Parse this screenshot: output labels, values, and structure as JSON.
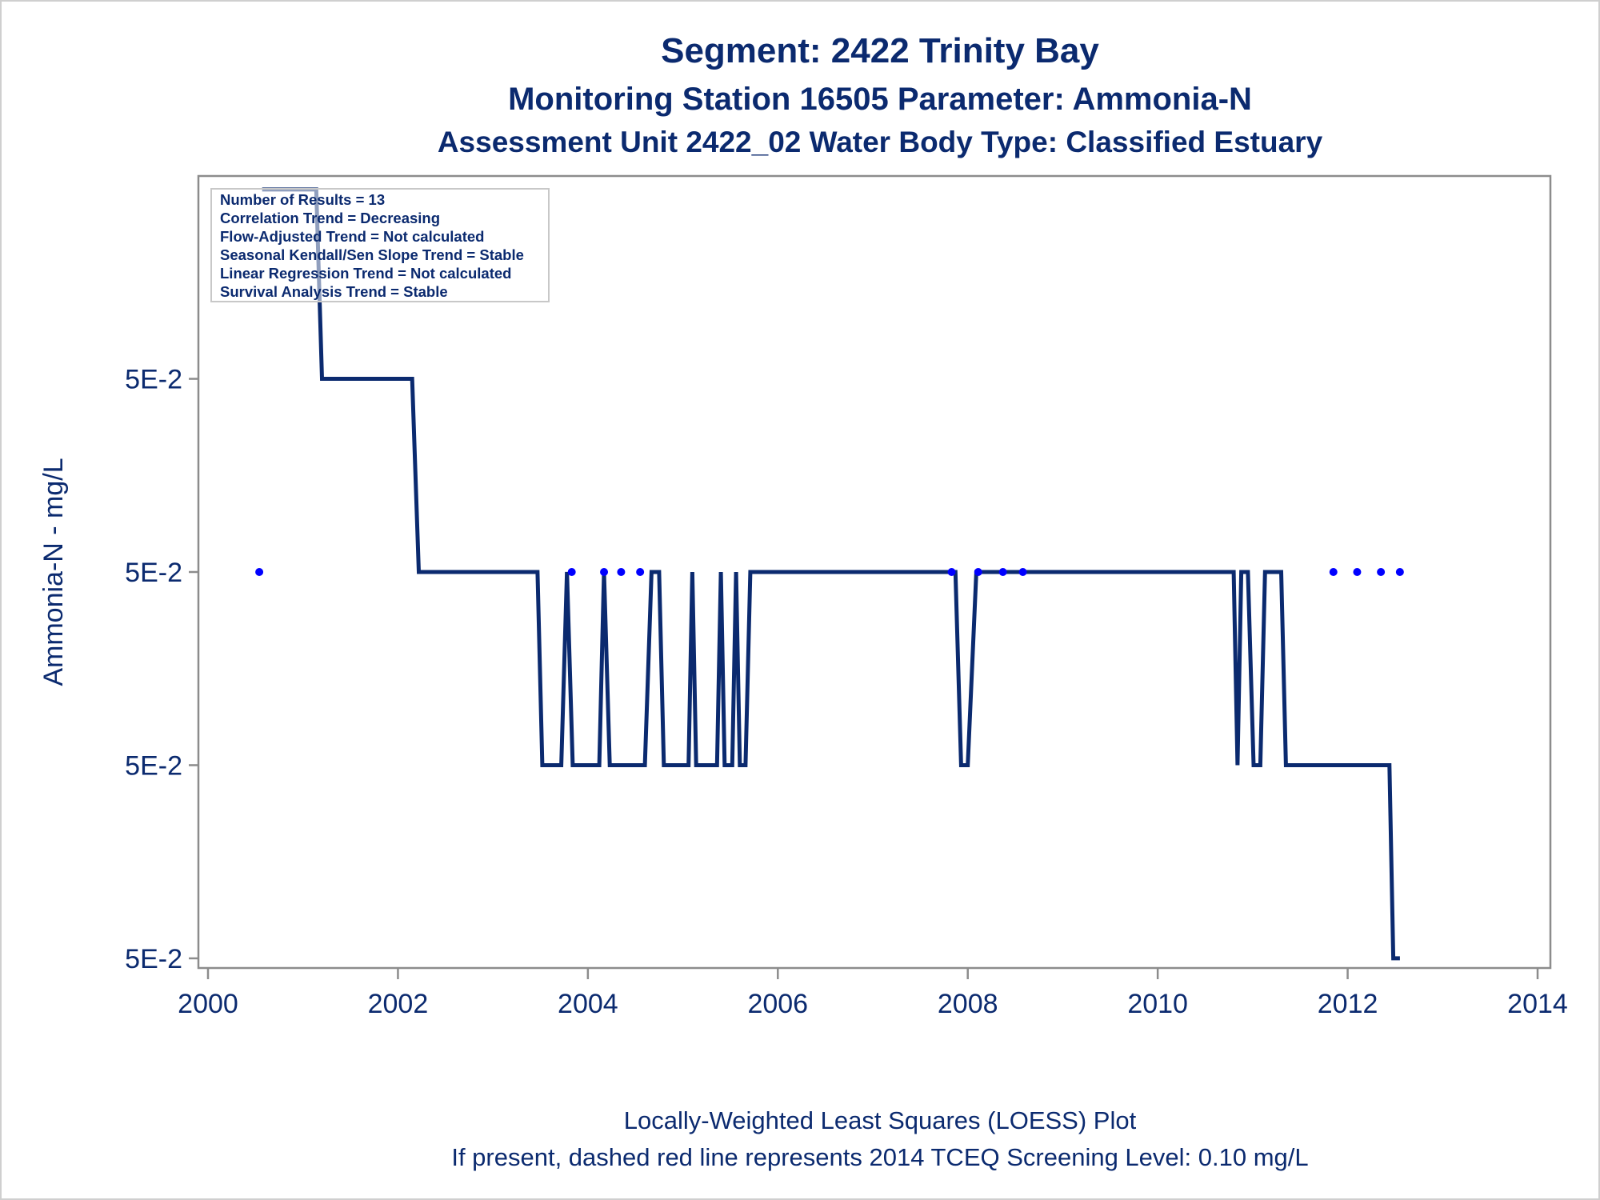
{
  "colors": {
    "ink": "#0b2a6f",
    "line": "#0b2a6f",
    "points": "#0000ff",
    "axis": "#8c8c8c"
  },
  "chart_data": {
    "type": "line",
    "title": "Segment: 2422  Trinity Bay",
    "subtitle": "Monitoring Station 16505 Parameter: Ammonia-N",
    "subtitle2": "Assessment Unit 2422_02   Water Body Type: Classified Estuary",
    "ylabel": "Ammonia-N - mg/L",
    "xlabel": "",
    "xlim": [
      2000,
      2014
    ],
    "x_ticks": [
      2000,
      2002,
      2004,
      2006,
      2008,
      2010,
      2012,
      2014
    ],
    "y_levels": [
      1,
      2,
      3,
      4
    ],
    "y_tick_labels": [
      "5E-2",
      "5E-2",
      "5E-2",
      "5E-2"
    ],
    "ylim": [
      0.95,
      5.05
    ],
    "grid": false,
    "stats_box": {
      "placement": "top-left",
      "lines": [
        "Number of Results = 13",
        "Correlation Trend = Decreasing",
        "Flow-Adjusted Trend = Not calculated",
        "Seasonal Kendall/Sen Slope Trend = Stable",
        "Linear Regression Trend = Not calculated",
        "Survival Analysis Trend = Stable"
      ]
    },
    "series": [
      {
        "type": "line",
        "x": [
          2000.57,
          2001.14,
          2001.2,
          2002.15,
          2002.22,
          2003.47,
          2003.52,
          2003.72,
          2003.78,
          2003.84,
          2004.12,
          2004.17,
          2004.23,
          2004.6,
          2004.67,
          2004.75,
          2004.8,
          2005.06,
          2005.1,
          2005.14,
          2005.36,
          2005.4,
          2005.44,
          2005.52,
          2005.56,
          2005.6,
          2005.66,
          2005.71,
          2005.76,
          2007.82,
          2007.87,
          2007.93,
          2008.0,
          2008.09,
          2008.14,
          2010.8,
          2010.84,
          2010.88,
          2010.95,
          2011.01,
          2011.08,
          2011.13,
          2011.3,
          2011.35,
          2012.44,
          2012.48,
          2012.55
        ],
        "y": [
          4.98,
          4.98,
          4.0,
          4.0,
          3.0,
          3.0,
          2.0,
          2.0,
          3.0,
          2.0,
          2.0,
          3.0,
          2.0,
          2.0,
          3.0,
          3.0,
          2.0,
          2.0,
          3.0,
          2.0,
          2.0,
          3.0,
          2.0,
          2.0,
          3.0,
          2.0,
          2.0,
          3.0,
          3.0,
          3.0,
          3.0,
          2.0,
          2.0,
          3.0,
          3.0,
          3.0,
          2.0,
          3.0,
          3.0,
          2.0,
          2.0,
          3.0,
          3.0,
          2.0,
          2.0,
          1.0,
          1.0
        ]
      },
      {
        "type": "scatter",
        "x": [
          2000.54,
          2003.83,
          2004.17,
          2004.35,
          2004.55,
          2007.83,
          2008.11,
          2008.37,
          2008.58,
          2011.85,
          2012.1,
          2012.35,
          2012.55
        ],
        "y": [
          3.0,
          3.0,
          3.0,
          3.0,
          3.0,
          3.0,
          3.0,
          3.0,
          3.0,
          3.0,
          3.0,
          3.0,
          3.0
        ]
      }
    ],
    "footnotes": [
      "Locally-Weighted Least Squares (LOESS) Plot",
      "If present, dashed red line represents 2014 TCEQ Screening Level: 0.10 mg/L"
    ]
  }
}
